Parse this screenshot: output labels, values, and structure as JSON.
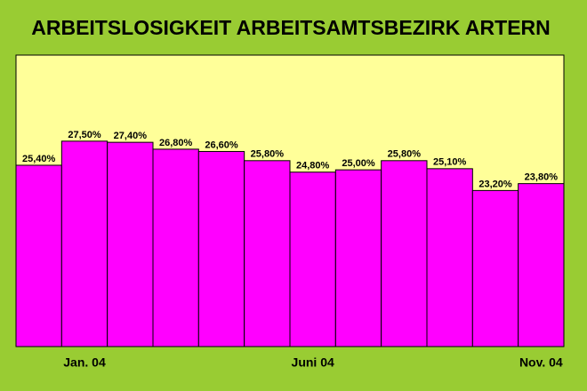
{
  "chart_data": {
    "type": "bar",
    "title": "ARBEITSLOSIGKEIT ARBEITSAMTSBEZIRK ARTERN",
    "categories": [
      null,
      "Jan. 04",
      null,
      null,
      null,
      null,
      "Juni 04",
      null,
      null,
      null,
      null,
      "Nov. 04"
    ],
    "values": [
      25.4,
      27.5,
      27.4,
      26.8,
      26.6,
      25.8,
      24.8,
      25.0,
      25.8,
      25.1,
      23.2,
      23.8
    ],
    "value_labels": [
      "25,40%",
      "27,50%",
      "27,40%",
      "26,80%",
      "26,60%",
      "25,80%",
      "24,80%",
      "25,00%",
      "25,80%",
      "25,10%",
      "23,20%",
      "23,80%"
    ],
    "color": "#ff00ff",
    "ylim": [
      9.6,
      35
    ]
  }
}
